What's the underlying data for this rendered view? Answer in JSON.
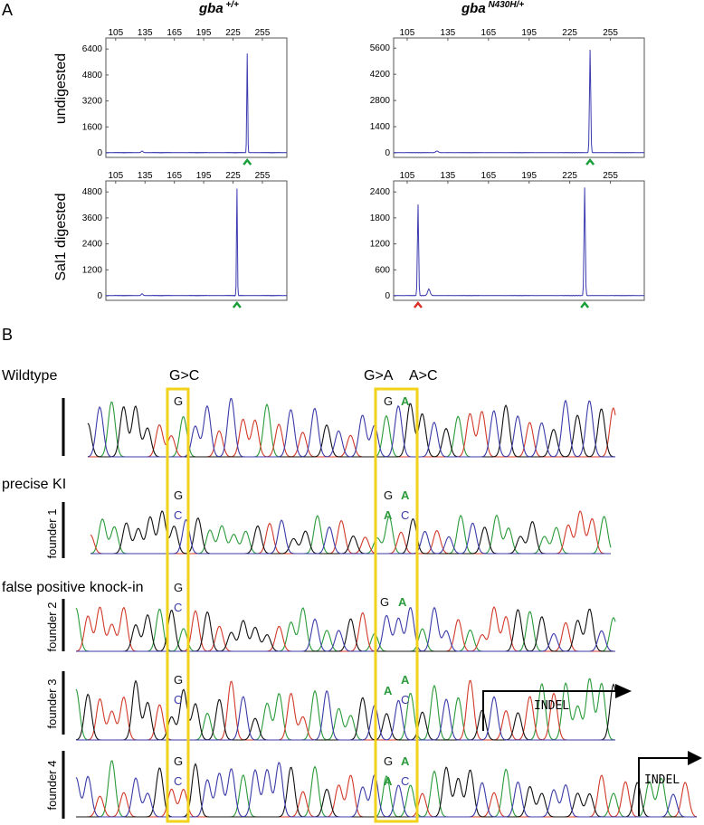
{
  "panel_a": {
    "label": "A",
    "col_titles": [
      {
        "gene": "gba",
        "genotype": " +/+"
      },
      {
        "gene": "gba",
        "genotype": " N430H/+"
      }
    ],
    "row_titles": [
      "undigested",
      "Sal1 digested"
    ],
    "x_ticks": [
      "105",
      "135",
      "165",
      "195",
      "225",
      "255"
    ]
  },
  "panel_b": {
    "label": "B",
    "wildtype_label": "Wildtype",
    "precise_label": "precise KI",
    "false_positive_label": "false positive knock-in",
    "mutation_labels": [
      "G>C",
      "G>A",
      "A>C"
    ],
    "founders": [
      "founder 1",
      "founder 2",
      "founder 3",
      "founder 4"
    ],
    "indel_label": "INDEL",
    "base_rows": [
      {
        "b1": "G",
        "b2": "G",
        "b3": "A"
      },
      {
        "b1": "G",
        "b2": "G",
        "b3": "A"
      },
      {
        "b1": "C",
        "b2": "A",
        "b3": "C"
      },
      {
        "b1": "G",
        "b2": "G",
        "b3": "A"
      },
      {
        "b1": "C",
        "b2": "",
        "b3": ""
      },
      {
        "b1": "G",
        "b2": "",
        "b3": "A"
      },
      {
        "b1": "C",
        "b2": "A",
        "b3": "C"
      },
      {
        "b1": "G",
        "b2": "G",
        "b3": "A"
      },
      {
        "b1": "C",
        "b2": "A",
        "b3": "C"
      }
    ]
  },
  "colors": {
    "trace_blue": "#3b3bb0",
    "green_marker": "#1a9e3a",
    "red_marker": "#d8322a",
    "box_yellow": "#f2d21a",
    "seq_green": "#2a9a3a",
    "seq_red": "#d23a2a",
    "seq_blue": "#3b3ba8",
    "seq_black": "#111111"
  },
  "chart_data": [
    {
      "type": "line",
      "title": "gba +/+",
      "ylabel": "undigested",
      "xlim": [
        95,
        280
      ],
      "yticks": [
        0,
        1600,
        3200,
        4800,
        6400
      ],
      "ylim": [
        0,
        6800
      ],
      "series": [
        {
          "x": [
            132,
            239.5
          ],
          "values": [
            90,
            6100
          ]
        }
      ],
      "markers": [
        {
          "x": 239.5,
          "color": "green"
        }
      ]
    },
    {
      "type": "line",
      "title": "gba N430H/+",
      "ylabel": "undigested",
      "xlim": [
        95,
        280
      ],
      "yticks": [
        0,
        1400,
        2800,
        4200,
        5600
      ],
      "ylim": [
        0,
        5900
      ],
      "series": [
        {
          "x": [
            127,
            240
          ],
          "values": [
            80,
            5500
          ]
        }
      ],
      "markers": [
        {
          "x": 240,
          "color": "green"
        }
      ]
    },
    {
      "type": "line",
      "title": "gba +/+",
      "ylabel": "Sal1 digested",
      "xlim": [
        95,
        280
      ],
      "yticks": [
        0,
        1200,
        2400,
        3600,
        4800
      ],
      "ylim": [
        0,
        5100
      ],
      "series": [
        {
          "x": [
            132,
            229
          ],
          "values": [
            80,
            4950
          ]
        }
      ],
      "markers": [
        {
          "x": 229,
          "color": "green"
        }
      ]
    },
    {
      "type": "line",
      "title": "gba N430H/+",
      "ylabel": "Sal1 digested",
      "xlim": [
        95,
        280
      ],
      "yticks": [
        0,
        600,
        1200,
        1800,
        2400
      ],
      "ylim": [
        0,
        2550
      ],
      "series": [
        {
          "x": [
            113,
            121,
            236
          ],
          "values": [
            2100,
            150,
            2500
          ]
        }
      ],
      "markers": [
        {
          "x": 113,
          "color": "red"
        },
        {
          "x": 236,
          "color": "green"
        }
      ]
    }
  ]
}
